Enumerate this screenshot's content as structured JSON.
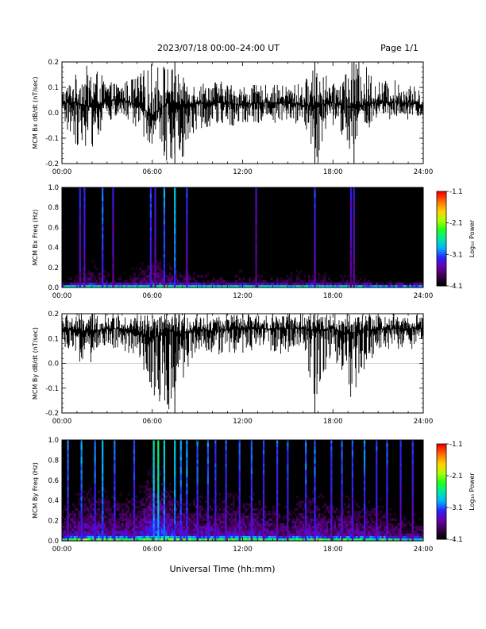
{
  "header": {
    "title": "2023/07/18  00:00–24:00 UT",
    "page_label": "Page 1/1"
  },
  "footer": {
    "xlabel": "Universal Time (hh:mm)"
  },
  "colorbar": {
    "label": "Log₁₀ Power",
    "ticks": [
      "-1.1",
      "-2.1",
      "-3.1",
      "-4.1"
    ],
    "scale": [
      "#000000",
      "#3a004a",
      "#6a00a8",
      "#2a20ff",
      "#00b4ff",
      "#00e8a0",
      "#20ff20",
      "#b0ff00",
      "#ffd000",
      "#ff7000",
      "#ff0000"
    ]
  },
  "chart_data": [
    {
      "type": "line",
      "ylabel": "MCM Bx dB/dt (nT/sec)",
      "xlim": [
        0,
        24
      ],
      "ylim": [
        -0.2,
        0.2
      ],
      "x_ticks": [
        "00:00",
        "06:00",
        "12:00",
        "18:00",
        "24:00"
      ],
      "y_ticks": [
        "0.2",
        "0.1",
        "0.0",
        "-0.1",
        "-0.2"
      ],
      "series": [
        {
          "x": [
            0,
            1,
            2,
            3,
            4,
            5,
            6,
            7,
            8,
            9,
            10,
            11,
            12,
            13,
            14,
            15,
            16,
            17,
            18,
            19,
            20,
            21,
            22,
            23,
            24
          ],
          "y": [
            0.04,
            0.04,
            0.02,
            0.05,
            0.05,
            0.03,
            -0.01,
            0.04,
            0.03,
            0.04,
            0.04,
            0.04,
            0.03,
            0.04,
            0.04,
            0.04,
            0.03,
            0.03,
            0.04,
            0.02,
            0.03,
            0.04,
            0.04,
            0.04,
            0.03
          ],
          "max": [
            0.09,
            0.16,
            0.2,
            0.12,
            0.12,
            0.15,
            0.2,
            0.2,
            0.14,
            0.12,
            0.13,
            0.12,
            0.11,
            0.11,
            0.11,
            0.11,
            0.12,
            0.2,
            0.11,
            0.2,
            0.2,
            0.13,
            0.13,
            0.12,
            0.08
          ],
          "min": [
            -0.05,
            -0.13,
            -0.14,
            -0.04,
            -0.02,
            -0.07,
            -0.13,
            -0.2,
            -0.18,
            -0.07,
            -0.05,
            -0.06,
            -0.05,
            -0.04,
            -0.04,
            -0.05,
            -0.04,
            -0.2,
            -0.05,
            -0.15,
            -0.08,
            -0.04,
            -0.03,
            -0.04,
            -0.01
          ]
        }
      ]
    },
    {
      "type": "heatmap",
      "ylabel": "MCM Bx Freq (Hz)",
      "xlim": [
        0,
        24
      ],
      "ylim": [
        0,
        1
      ],
      "x_ticks": [
        "00:00",
        "06:00",
        "12:00",
        "18:00",
        "24:00"
      ],
      "y_ticks": [
        "1.0",
        "0.8",
        "0.6",
        "0.4",
        "0.2",
        "0.0"
      ],
      "zlim": [
        -4.1,
        -1.1
      ],
      "column_hours": [
        0,
        1,
        2,
        3,
        4,
        5,
        6,
        7,
        8,
        9,
        10,
        11,
        12,
        13,
        14,
        15,
        16,
        17,
        18,
        19,
        20,
        21,
        22,
        23,
        24
      ],
      "base_power": [
        -4.0,
        -3.8,
        -3.6,
        -3.8,
        -3.8,
        -3.7,
        -3.5,
        -3.6,
        -3.7,
        -3.8,
        -3.8,
        -3.8,
        -3.8,
        -3.8,
        -3.8,
        -3.8,
        -3.8,
        -3.7,
        -3.9,
        -3.8,
        -3.9,
        -4.0,
        -4.0,
        -4.0,
        -4.0
      ],
      "burst_hours": [
        1.2,
        1.5,
        2.7,
        3.4,
        5.9,
        6.2,
        6.8,
        7.5,
        8.3,
        12.9,
        16.8,
        19.2,
        19.4
      ],
      "burst_power": [
        -3.2,
        -3.2,
        -3.0,
        -3.3,
        -3.1,
        -3.3,
        -2.9,
        -2.7,
        -3.2,
        -3.4,
        -3.2,
        -3.3,
        -3.3
      ]
    },
    {
      "type": "line",
      "ylabel": "MCM By dB/dt (nT/sec)",
      "xlim": [
        0,
        24
      ],
      "ylim": [
        -0.2,
        0.2
      ],
      "x_ticks": [
        "00:00",
        "06:00",
        "12:00",
        "18:00",
        "24:00"
      ],
      "y_ticks": [
        "0.2",
        "0.1",
        "0.0",
        "-0.1",
        "-0.2"
      ],
      "series": [
        {
          "x": [
            0,
            1,
            2,
            3,
            4,
            5,
            6,
            7,
            8,
            9,
            10,
            11,
            12,
            13,
            14,
            15,
            16,
            17,
            18,
            19,
            20,
            21,
            22,
            23,
            24
          ],
          "y": [
            0.14,
            0.13,
            0.13,
            0.14,
            0.14,
            0.13,
            0.1,
            0.13,
            0.12,
            0.14,
            0.13,
            0.14,
            0.14,
            0.14,
            0.14,
            0.14,
            0.14,
            0.13,
            0.14,
            0.12,
            0.13,
            0.14,
            0.14,
            0.14,
            0.14
          ],
          "max": [
            0.2,
            0.2,
            0.2,
            0.2,
            0.2,
            0.2,
            0.2,
            0.2,
            0.2,
            0.2,
            0.2,
            0.2,
            0.2,
            0.2,
            0.2,
            0.2,
            0.2,
            0.2,
            0.2,
            0.2,
            0.2,
            0.2,
            0.2,
            0.2,
            0.2
          ],
          "min": [
            0.07,
            0.0,
            0.0,
            0.06,
            0.05,
            0.03,
            -0.12,
            -0.2,
            -0.08,
            0.04,
            0.03,
            0.04,
            0.04,
            0.06,
            0.04,
            0.03,
            0.07,
            -0.2,
            0.04,
            -0.17,
            -0.07,
            0.05,
            0.06,
            0.05,
            0.08
          ]
        }
      ]
    },
    {
      "type": "heatmap",
      "ylabel": "MCM By Freq (Hz)",
      "xlim": [
        0,
        24
      ],
      "ylim": [
        0,
        1
      ],
      "x_ticks": [
        "00:00",
        "06:00",
        "12:00",
        "18:00",
        "24:00"
      ],
      "y_ticks": [
        "1.0",
        "0.8",
        "0.6",
        "0.4",
        "0.2",
        "0.0"
      ],
      "zlim": [
        -4.1,
        -1.1
      ],
      "column_hours": [
        0,
        1,
        2,
        3,
        4,
        5,
        6,
        7,
        8,
        9,
        10,
        11,
        12,
        13,
        14,
        15,
        16,
        17,
        18,
        19,
        20,
        21,
        22,
        23,
        24
      ],
      "base_power": [
        -3.5,
        -3.3,
        -3.2,
        -3.3,
        -3.3,
        -3.3,
        -3.0,
        -3.1,
        -3.3,
        -3.3,
        -3.3,
        -3.3,
        -3.3,
        -3.3,
        -3.4,
        -3.5,
        -3.3,
        -3.3,
        -3.4,
        -3.3,
        -3.4,
        -3.4,
        -3.5,
        -3.6,
        -3.6
      ],
      "burst_hours": [
        0.4,
        1.3,
        2.2,
        2.7,
        3.5,
        4.8,
        6.1,
        6.4,
        6.8,
        7.5,
        7.9,
        8.3,
        9.0,
        9.7,
        10.2,
        10.9,
        11.8,
        12.6,
        13.4,
        14.3,
        15.0,
        16.2,
        16.8,
        17.9,
        18.6,
        19.3,
        20.1,
        20.9,
        21.6,
        22.5,
        23.3
      ],
      "burst_power": [
        -3.0,
        -2.9,
        -3.0,
        -2.8,
        -3.0,
        -3.1,
        -2.6,
        -2.4,
        -2.7,
        -2.7,
        -2.9,
        -2.9,
        -3.0,
        -3.0,
        -3.1,
        -3.1,
        -3.1,
        -3.0,
        -3.1,
        -3.1,
        -3.1,
        -3.0,
        -3.0,
        -3.1,
        -3.1,
        -3.1,
        -3.0,
        -3.1,
        -3.1,
        -3.2,
        -3.2
      ]
    }
  ]
}
